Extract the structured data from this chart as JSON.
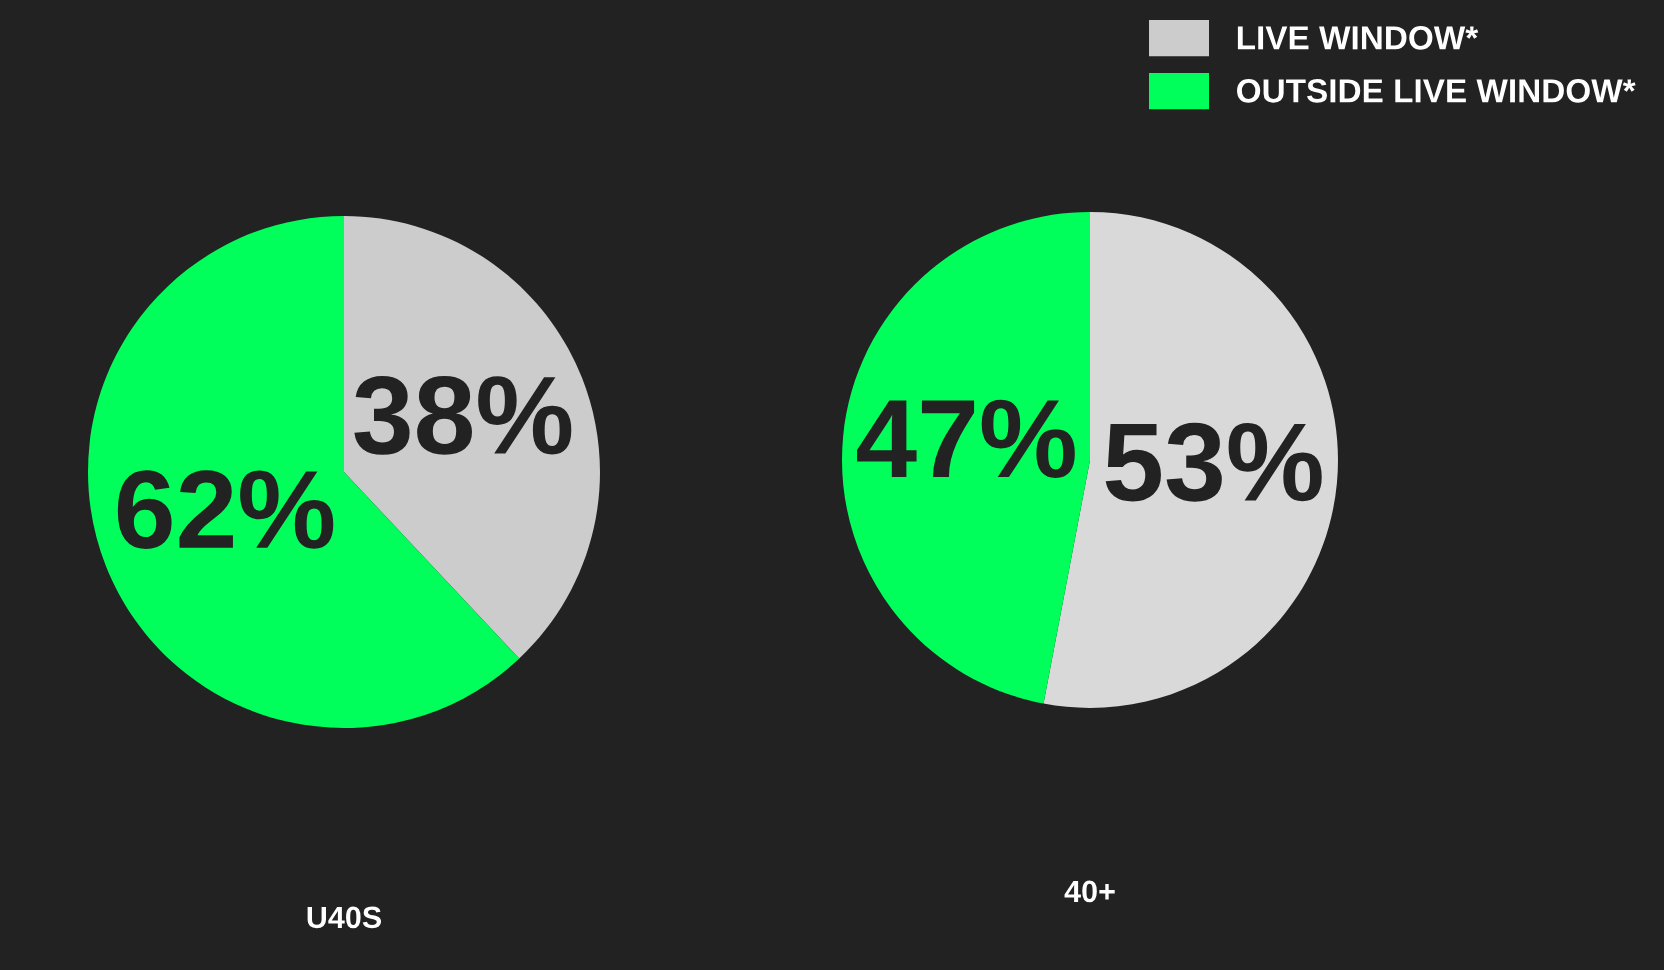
{
  "chart_data": [
    {
      "type": "pie",
      "xlabel": "U40S",
      "categories": [
        "LIVE WINDOW*",
        "OUTSIDE LIVE WINDOW*"
      ],
      "values": [
        38,
        62
      ],
      "colors": [
        "#cccccc",
        "#00ff5a"
      ],
      "value_labels": [
        "38%",
        "62%"
      ],
      "legend": "top right"
    },
    {
      "type": "pie",
      "xlabel": "40+",
      "categories": [
        null,
        null
      ],
      "values": [
        53,
        47
      ],
      "colors": [
        "#d9d9d9",
        "#00ff5a"
      ],
      "value_labels": [
        "53%",
        "47%"
      ]
    }
  ]
}
